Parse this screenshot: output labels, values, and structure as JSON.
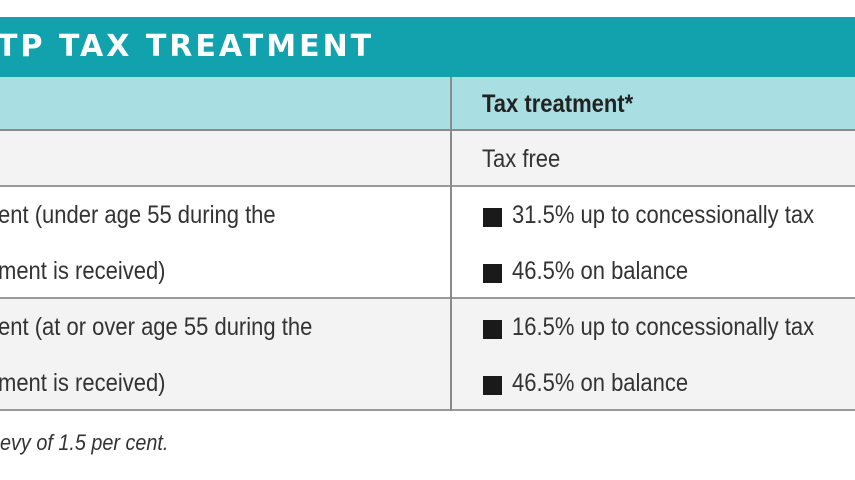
{
  "title": "TP TAX TREATMENT",
  "table": {
    "header": {
      "col1": "",
      "col2": "Tax treatment*"
    },
    "rows": [
      {
        "left_lines": [
          ""
        ],
        "right_lines": [
          "Tax free"
        ],
        "right_bullets": false
      },
      {
        "left_lines": [
          "ent (under age 55 during the",
          "ment is received)"
        ],
        "right_lines": [
          "31.5% up to concessionally tax",
          "46.5% on balance"
        ],
        "right_bullets": true
      },
      {
        "left_lines": [
          "ent (at or over age 55 during the",
          "ment is received)"
        ],
        "right_lines": [
          "16.5% up to concessionally tax",
          "46.5% on balance"
        ],
        "right_bullets": true
      }
    ]
  },
  "footnote": "evy of 1.5 per cent.",
  "colors": {
    "title_bar": "#12a2ad",
    "header_row": "#a9dfe3",
    "row_shade": "#f3f3f3"
  }
}
